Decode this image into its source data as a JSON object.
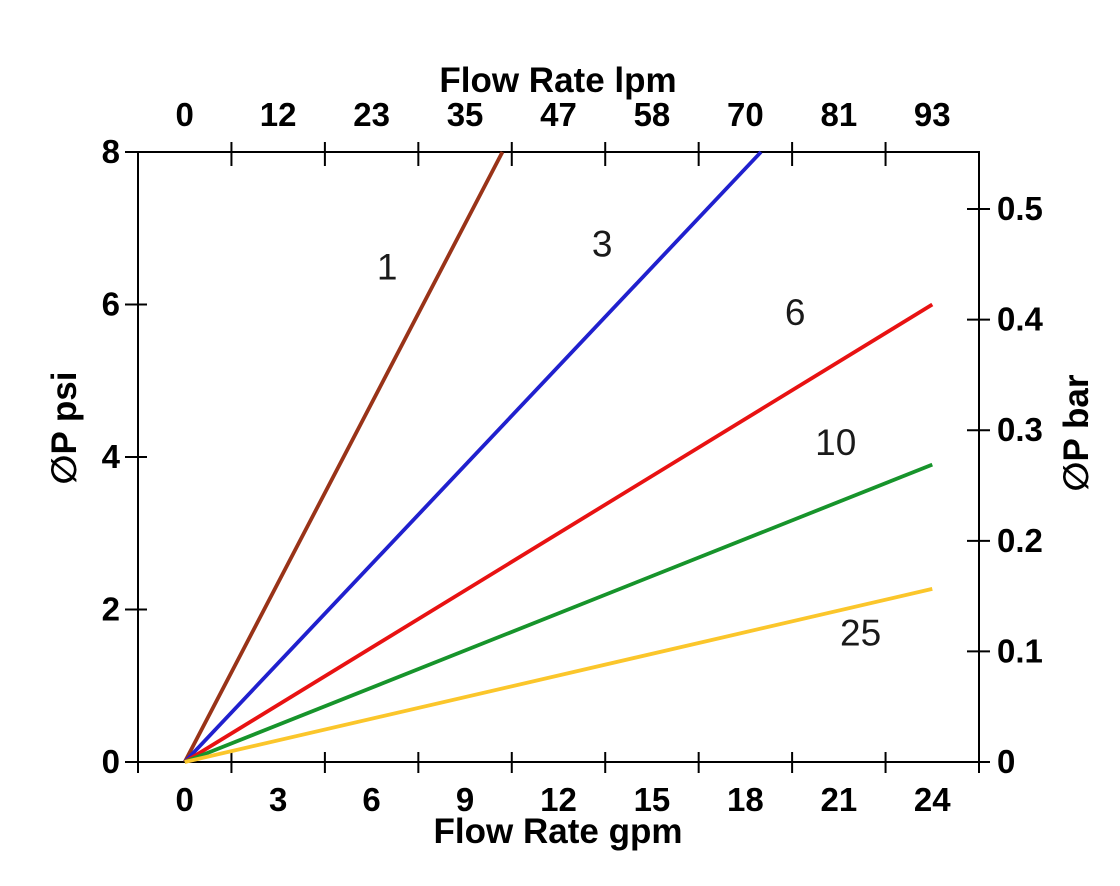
{
  "figure": {
    "background": "#ffffff",
    "axis_color": "#000000",
    "tick_label_color": "#000000",
    "series_label_color": "#1a1a1a"
  },
  "chart_data": {
    "type": "line",
    "title": "",
    "legend": "none",
    "grid": false,
    "x_axes": {
      "bottom": {
        "label": "Flow Rate gpm",
        "tick_labels": [
          "0",
          "3",
          "6",
          "9",
          "12",
          "15",
          "18",
          "21",
          "24"
        ],
        "tick_values_gpm": [
          0,
          3,
          6,
          9,
          12,
          15,
          18,
          21,
          24
        ],
        "range_gpm": [
          -1.5,
          25.5
        ]
      },
      "top": {
        "label": "Flow Rate lpm",
        "tick_labels": [
          "0",
          "12",
          "23",
          "35",
          "47",
          "58",
          "70",
          "81",
          "93"
        ],
        "label_positions_gpm": [
          0,
          3,
          6,
          9,
          12,
          15,
          18,
          21,
          24
        ]
      }
    },
    "y_axes": {
      "left": {
        "label": "∅P psi",
        "tick_labels": [
          "0",
          "2",
          "4",
          "6",
          "8"
        ],
        "tick_values_psi": [
          0,
          2,
          4,
          6,
          8
        ],
        "range_psi": [
          0,
          8
        ]
      },
      "right": {
        "label": "∅P bar",
        "tick_labels": [
          "0",
          "0.1",
          "0.2",
          "0.3",
          "0.4",
          "0.5"
        ],
        "tick_values_bar": [
          0,
          0.1,
          0.2,
          0.3,
          0.4,
          0.5
        ]
      }
    },
    "series": [
      {
        "name": "1",
        "color": "#993318",
        "points_gpm_psi": [
          [
            0,
            0
          ],
          [
            10.2,
            8
          ]
        ],
        "label_pos_gpm_psi": [
          6.5,
          6.5
        ]
      },
      {
        "name": "3",
        "color": "#2020CE",
        "points_gpm_psi": [
          [
            0,
            0
          ],
          [
            18.5,
            8
          ]
        ],
        "label_pos_gpm_psi": [
          13.4,
          6.8
        ]
      },
      {
        "name": "6",
        "color": "#E81212",
        "points_gpm_psi": [
          [
            0,
            0
          ],
          [
            24,
            6.0
          ]
        ],
        "label_pos_gpm_psi": [
          19.6,
          5.9
        ]
      },
      {
        "name": "10",
        "color": "#17942B",
        "points_gpm_psi": [
          [
            0,
            0
          ],
          [
            24,
            3.9
          ]
        ],
        "label_pos_gpm_psi": [
          20.9,
          4.2
        ]
      },
      {
        "name": "25",
        "color": "#FBC62B",
        "points_gpm_psi": [
          [
            0,
            0
          ],
          [
            24,
            2.27
          ]
        ],
        "label_pos_gpm_psi": [
          21.7,
          1.7
        ]
      }
    ]
  }
}
